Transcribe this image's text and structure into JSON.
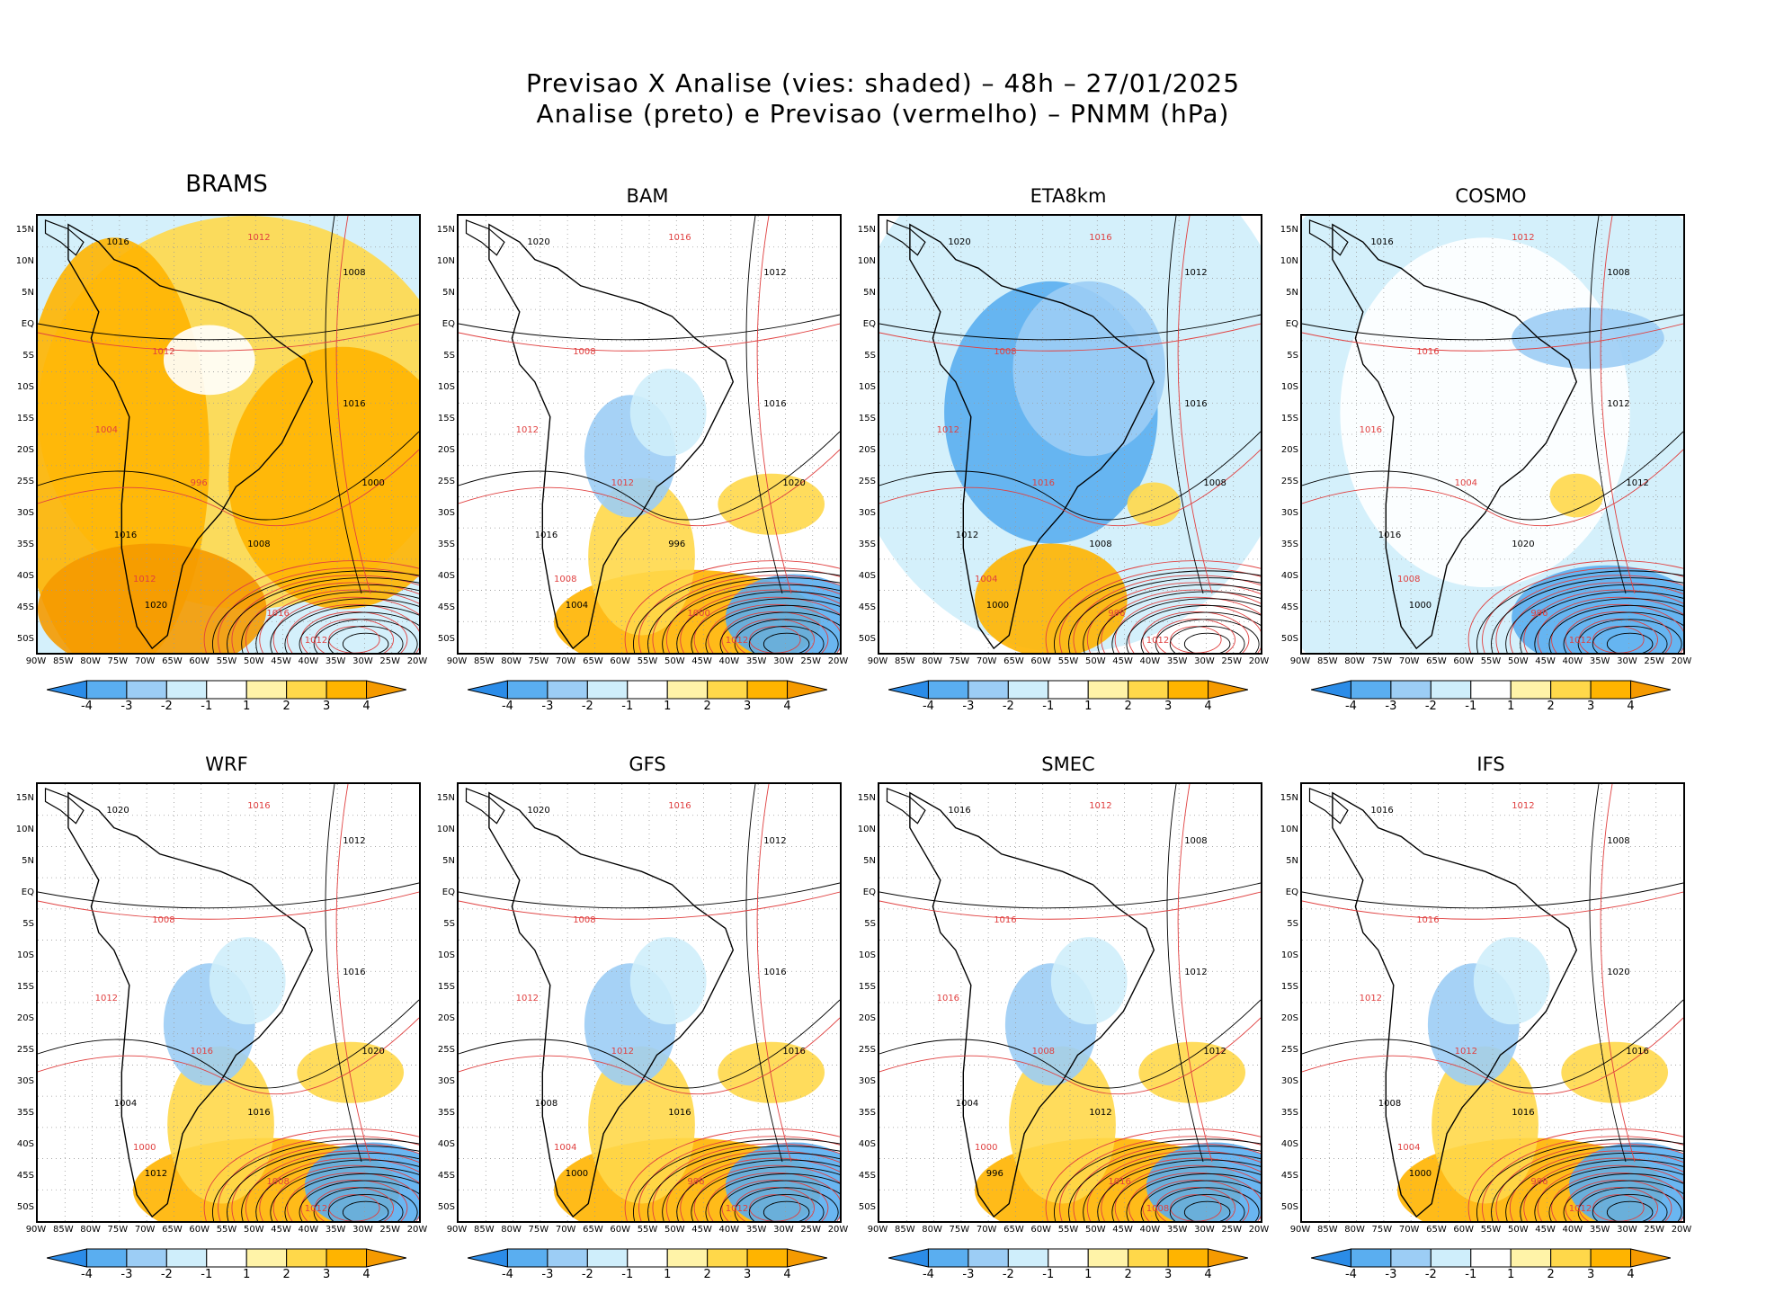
{
  "title_line1": "Previsao X Analise (vies: shaded) – 48h – 27/01/2025",
  "title_line2": "Analise (preto) e Previsao (vermelho) – PNMM (hPa)",
  "lat_ticks": [
    "15N",
    "10N",
    "5N",
    "EQ",
    "5S",
    "10S",
    "15S",
    "20S",
    "25S",
    "30S",
    "35S",
    "40S",
    "45S",
    "50S"
  ],
  "lon_ticks": [
    "90W",
    "85W",
    "80W",
    "75W",
    "70W",
    "65W",
    "60W",
    "55W",
    "50W",
    "45W",
    "40W",
    "35W",
    "30W",
    "25W",
    "20W"
  ],
  "colorbar": {
    "labels": [
      "-4",
      "-3",
      "-2",
      "-1",
      "1",
      "2",
      "3",
      "4"
    ],
    "colors": [
      "#2b8ce8",
      "#5aaef0",
      "#9ccdf5",
      "#cfeefb",
      "#ffffff",
      "#fff3a8",
      "#ffd84a",
      "#ffb400",
      "#f59a00"
    ]
  },
  "analysis_color": "#000000",
  "forecast_color": "#e04040",
  "panels": [
    {
      "name": "BRAMS",
      "bias": "warm",
      "isobars": [
        "1016",
        "1012",
        "1008",
        "1012",
        "1016",
        "1004",
        "1000",
        "996",
        "1016",
        "1012",
        "1020",
        "1016",
        "1008",
        "1012"
      ]
    },
    {
      "name": "BAM",
      "bias": "mixed",
      "isobars": [
        "1020",
        "1016",
        "1012",
        "1008",
        "1016",
        "1012",
        "1020",
        "1012",
        "1016",
        "1008",
        "1004",
        "1000",
        "996",
        "1012"
      ]
    },
    {
      "name": "ETA8km",
      "bias": "cold",
      "isobars": [
        "1020",
        "1016",
        "1012",
        "1008",
        "1016",
        "1012",
        "1008",
        "1016",
        "1012",
        "1004",
        "1000",
        "996",
        "1008",
        "1012"
      ]
    },
    {
      "name": "COSMO",
      "bias": "cold-edge",
      "isobars": [
        "1016",
        "1012",
        "1008",
        "1016",
        "1012",
        "1016",
        "1012",
        "1004",
        "1016",
        "1008",
        "1000",
        "996",
        "1020",
        "1012"
      ]
    },
    {
      "name": "WRF",
      "bias": "mixed",
      "isobars": [
        "1020",
        "1016",
        "1012",
        "1008",
        "1016",
        "1012",
        "1020",
        "1016",
        "1004",
        "1000",
        "1012",
        "1008",
        "1016",
        "1012"
      ]
    },
    {
      "name": "GFS",
      "bias": "mixed",
      "isobars": [
        "1020",
        "1016",
        "1012",
        "1008",
        "1016",
        "1012",
        "1016",
        "1012",
        "1008",
        "1004",
        "1000",
        "996",
        "1016",
        "1012"
      ]
    },
    {
      "name": "SMEC",
      "bias": "mixed",
      "isobars": [
        "1016",
        "1012",
        "1008",
        "1016",
        "1012",
        "1016",
        "1012",
        "1008",
        "1004",
        "1000",
        "996",
        "1016",
        "1012",
        "1008"
      ]
    },
    {
      "name": "IFS",
      "bias": "mixed",
      "isobars": [
        "1016",
        "1012",
        "1008",
        "1016",
        "1020",
        "1012",
        "1016",
        "1012",
        "1008",
        "1004",
        "1000",
        "996",
        "1016",
        "1012"
      ]
    }
  ]
}
